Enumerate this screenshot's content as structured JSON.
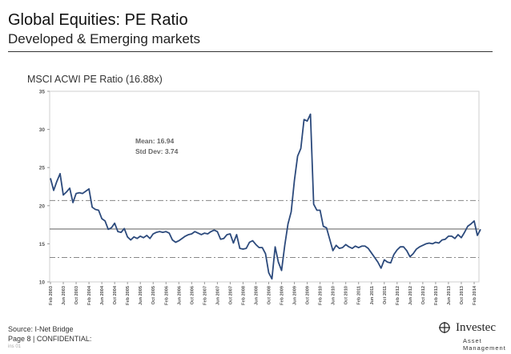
{
  "header": {
    "title": "Global Equities: PE Ratio",
    "subtitle": "Developed & Emerging markets"
  },
  "footer": {
    "source": "Source: I-Net Bridge",
    "page": "Page 8 | CONFIDENTIAL:",
    "tiny": "ins 01"
  },
  "logo": {
    "name": "Investec",
    "sub": "Asset Management"
  },
  "chart_data": {
    "type": "line",
    "title": "MSCI ACWI PE Ratio (16.88x)",
    "ylim": [
      10,
      35
    ],
    "yticks": [
      10,
      15,
      20,
      25,
      30,
      35
    ],
    "xlim": [
      0,
      133
    ],
    "xticks": [
      {
        "label": "Feb 2003",
        "i": 0
      },
      {
        "label": "Jun 2003",
        "i": 4
      },
      {
        "label": "Oct 2003",
        "i": 8
      },
      {
        "label": "Feb 2004",
        "i": 12
      },
      {
        "label": "Jun 2004",
        "i": 16
      },
      {
        "label": "Oct 2004",
        "i": 20
      },
      {
        "label": "Feb 2005",
        "i": 24
      },
      {
        "label": "Jun 2005",
        "i": 28
      },
      {
        "label": "Oct 2005",
        "i": 32
      },
      {
        "label": "Feb 2006",
        "i": 36
      },
      {
        "label": "Jun 2006",
        "i": 40
      },
      {
        "label": "Oct 2006",
        "i": 44
      },
      {
        "label": "Feb 2007",
        "i": 48
      },
      {
        "label": "Jun 2007",
        "i": 52
      },
      {
        "label": "Oct 2007",
        "i": 56
      },
      {
        "label": "Feb 2008",
        "i": 60
      },
      {
        "label": "Jun 2008",
        "i": 64
      },
      {
        "label": "Oct 2008",
        "i": 68
      },
      {
        "label": "Feb 2009",
        "i": 72
      },
      {
        "label": "Jun 2009",
        "i": 76
      },
      {
        "label": "Oct 2009",
        "i": 80
      },
      {
        "label": "Feb 2010",
        "i": 84
      },
      {
        "label": "Jun 2010",
        "i": 88
      },
      {
        "label": "Oct 2010",
        "i": 92
      },
      {
        "label": "Feb 2011",
        "i": 96
      },
      {
        "label": "Jun 2011",
        "i": 100
      },
      {
        "label": "Oct 2011",
        "i": 104
      },
      {
        "label": "Feb 2012",
        "i": 108
      },
      {
        "label": "Jun 2012",
        "i": 112
      },
      {
        "label": "Oct 2012",
        "i": 116
      },
      {
        "label": "Feb 2013",
        "i": 120
      },
      {
        "label": "Jun 2013",
        "i": 124
      },
      {
        "label": "Oct 2013",
        "i": 128
      },
      {
        "label": "Feb 2014",
        "i": 132
      }
    ],
    "series": [
      {
        "color": "#2c4a7c",
        "values": [
          23.6,
          22.0,
          23.2,
          24.2,
          21.4,
          21.8,
          22.3,
          20.4,
          21.6,
          21.7,
          21.6,
          21.9,
          22.2,
          19.8,
          19.5,
          19.4,
          18.3,
          18.0,
          16.9,
          17.1,
          17.7,
          16.6,
          16.5,
          17.0,
          15.9,
          15.5,
          15.9,
          15.7,
          16.0,
          15.8,
          16.1,
          15.7,
          16.3,
          16.5,
          16.6,
          16.5,
          16.6,
          16.4,
          15.5,
          15.2,
          15.4,
          15.7,
          16.0,
          16.2,
          16.3,
          16.6,
          16.4,
          16.2,
          16.4,
          16.3,
          16.6,
          16.8,
          16.6,
          15.6,
          15.7,
          16.2,
          16.3,
          15.1,
          16.2,
          14.4,
          14.3,
          14.4,
          15.2,
          15.4,
          14.9,
          14.5,
          14.5,
          13.7,
          11.2,
          10.4,
          14.6,
          12.6,
          11.5,
          14.8,
          17.6,
          19.2,
          23.3,
          26.5,
          27.5,
          31.3,
          31.1,
          32.0,
          20.2,
          19.4,
          19.4,
          17.3,
          17.1,
          15.6,
          14.1,
          14.8,
          14.4,
          14.5,
          14.9,
          14.6,
          14.4,
          14.7,
          14.5,
          14.7,
          14.7,
          14.4,
          13.8,
          13.2,
          12.6,
          11.8,
          12.9,
          12.6,
          12.5,
          13.6,
          14.2,
          14.6,
          14.6,
          14.1,
          13.3,
          13.7,
          14.3,
          14.6,
          14.8,
          15.0,
          15.1,
          15.0,
          15.2,
          15.1,
          15.5,
          15.6,
          16.0,
          16.0,
          15.7,
          16.2,
          15.8,
          16.5,
          17.3,
          17.6,
          18.0,
          16.1,
          16.9
        ]
      }
    ],
    "reference_lines": [
      {
        "value": 16.94,
        "style": "solid"
      },
      {
        "value": 20.68,
        "style": "dashdot"
      },
      {
        "value": 13.2,
        "style": "dashdot"
      }
    ],
    "annotations": [
      "Mean: 16.94",
      "Std Dev: 3.74"
    ],
    "grid": false,
    "legend": "none"
  }
}
